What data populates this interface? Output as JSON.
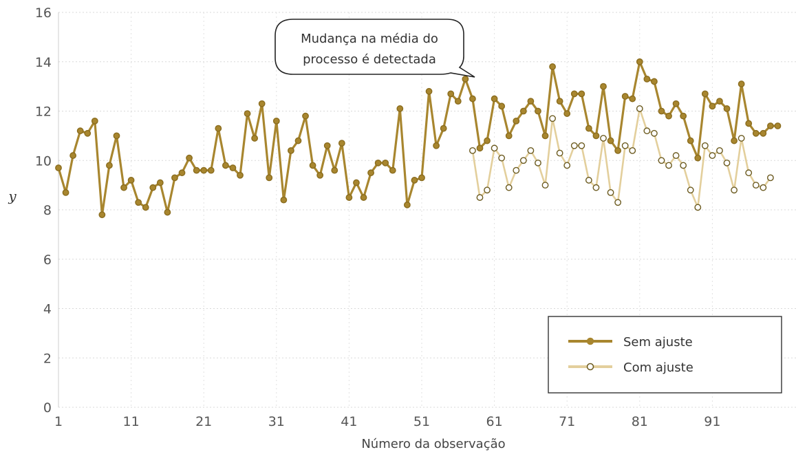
{
  "chart_data": {
    "type": "line",
    "title": "",
    "xlabel": "Número da observação",
    "ylabel": "y",
    "xlim": [
      1,
      100
    ],
    "ylim": [
      0,
      16
    ],
    "x_ticks": [
      1,
      11,
      21,
      31,
      41,
      51,
      61,
      71,
      81,
      91
    ],
    "y_ticks": [
      0,
      2,
      4,
      6,
      8,
      10,
      12,
      14,
      16
    ],
    "grid": true,
    "legend_position": "bottom-right",
    "annotation": {
      "line1": "Mudança na média do",
      "line2": "processo é detectada",
      "points_to_x": 58,
      "points_to_y": 13.3
    },
    "series": [
      {
        "name": "Sem ajuste",
        "color": "#a8862f",
        "marker": "filled-circle",
        "x": [
          1,
          2,
          3,
          4,
          5,
          6,
          7,
          8,
          9,
          10,
          11,
          12,
          13,
          14,
          15,
          16,
          17,
          18,
          19,
          20,
          21,
          22,
          23,
          24,
          25,
          26,
          27,
          28,
          29,
          30,
          31,
          32,
          33,
          34,
          35,
          36,
          37,
          38,
          39,
          40,
          41,
          42,
          43,
          44,
          45,
          46,
          47,
          48,
          49,
          50,
          51,
          52,
          53,
          54,
          55,
          56,
          57,
          58,
          59,
          60,
          61,
          62,
          63,
          64,
          65,
          66,
          67,
          68,
          69,
          70,
          71,
          72,
          73,
          74,
          75,
          76,
          77,
          78,
          79,
          80,
          81,
          82,
          83,
          84,
          85,
          86,
          87,
          88,
          89,
          90,
          91,
          92,
          93,
          94,
          95,
          96,
          97,
          98,
          99,
          100
        ],
        "values": [
          9.7,
          8.7,
          10.2,
          11.2,
          11.1,
          11.6,
          7.8,
          9.8,
          11.0,
          8.9,
          9.2,
          8.3,
          8.1,
          8.9,
          9.1,
          7.9,
          9.3,
          9.5,
          10.1,
          9.6,
          9.6,
          9.6,
          11.3,
          9.8,
          9.7,
          9.4,
          11.9,
          10.9,
          12.3,
          9.3,
          11.6,
          8.4,
          10.4,
          10.8,
          11.8,
          9.8,
          9.4,
          10.6,
          9.6,
          10.7,
          8.5,
          9.1,
          8.5,
          9.5,
          9.9,
          9.9,
          9.6,
          12.1,
          8.2,
          9.2,
          9.3,
          12.8,
          10.6,
          11.3,
          12.7,
          12.4,
          13.3,
          12.5,
          10.5,
          10.8,
          12.5,
          12.2,
          11.0,
          11.6,
          12.0,
          12.4,
          12.0,
          11.0,
          13.8,
          12.4,
          11.9,
          12.7,
          12.7,
          11.3,
          11.0,
          13.0,
          10.8,
          10.4,
          12.6,
          12.5,
          14.0,
          13.3,
          13.2,
          12.0,
          11.8,
          12.3,
          11.8,
          10.8,
          10.1,
          12.7,
          12.2,
          12.4,
          12.1,
          10.8,
          13.1,
          11.5,
          11.1,
          11.1,
          11.4,
          11.4
        ]
      },
      {
        "name": "Com ajuste",
        "color": "#e3cf9c",
        "marker": "open-circle",
        "x": [
          58,
          59,
          60,
          61,
          62,
          63,
          64,
          65,
          66,
          67,
          68,
          69,
          70,
          71,
          72,
          73,
          74,
          75,
          76,
          77,
          78,
          79,
          80,
          81,
          82,
          83,
          84,
          85,
          86,
          87,
          88,
          89,
          90,
          91,
          92,
          93,
          94,
          95,
          96,
          97,
          98,
          99
        ],
        "values": [
          10.4,
          8.5,
          8.8,
          10.5,
          10.1,
          8.9,
          9.6,
          10.0,
          10.4,
          9.9,
          9.0,
          11.7,
          10.3,
          9.8,
          10.6,
          10.6,
          9.2,
          8.9,
          10.9,
          8.7,
          8.3,
          10.6,
          10.4,
          12.1,
          11.2,
          11.1,
          10.0,
          9.8,
          10.2,
          9.8,
          8.8,
          8.1,
          10.6,
          10.2,
          10.4,
          9.9,
          8.8,
          10.9,
          9.5,
          9.0,
          8.9,
          9.3
        ]
      }
    ]
  }
}
